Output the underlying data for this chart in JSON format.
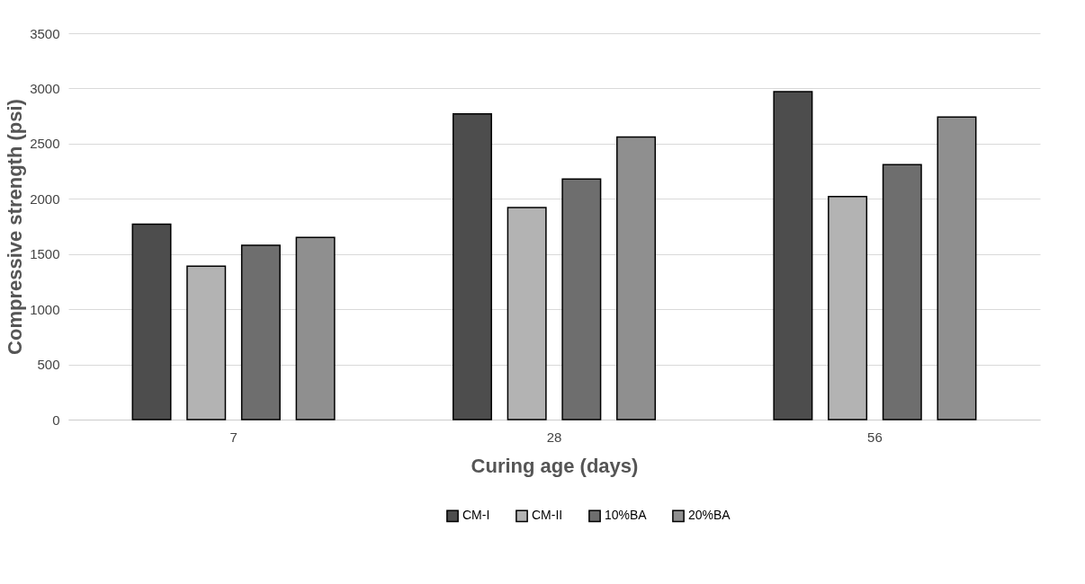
{
  "chart_data": {
    "type": "bar",
    "xlabel": "Curing age (days)",
    "ylabel": "Compressive strength (psi)",
    "categories": [
      "7",
      "28",
      "56"
    ],
    "series": [
      {
        "name": "CM-I",
        "color": "#4d4d4d",
        "values": [
          1770,
          2770,
          2970
        ]
      },
      {
        "name": "CM-II",
        "color": "#b3b3b3",
        "values": [
          1390,
          1920,
          2020
        ]
      },
      {
        "name": "10%BA",
        "color": "#6e6e6e",
        "values": [
          1580,
          2180,
          2310
        ]
      },
      {
        "name": "20%BA",
        "color": "#8f8f8f",
        "values": [
          1650,
          2560,
          2740
        ]
      }
    ],
    "ylim": [
      0,
      3500
    ],
    "yticks": [
      0,
      500,
      1000,
      1500,
      2000,
      2500,
      3000,
      3500
    ],
    "grid": "y",
    "legend": "bottom"
  }
}
